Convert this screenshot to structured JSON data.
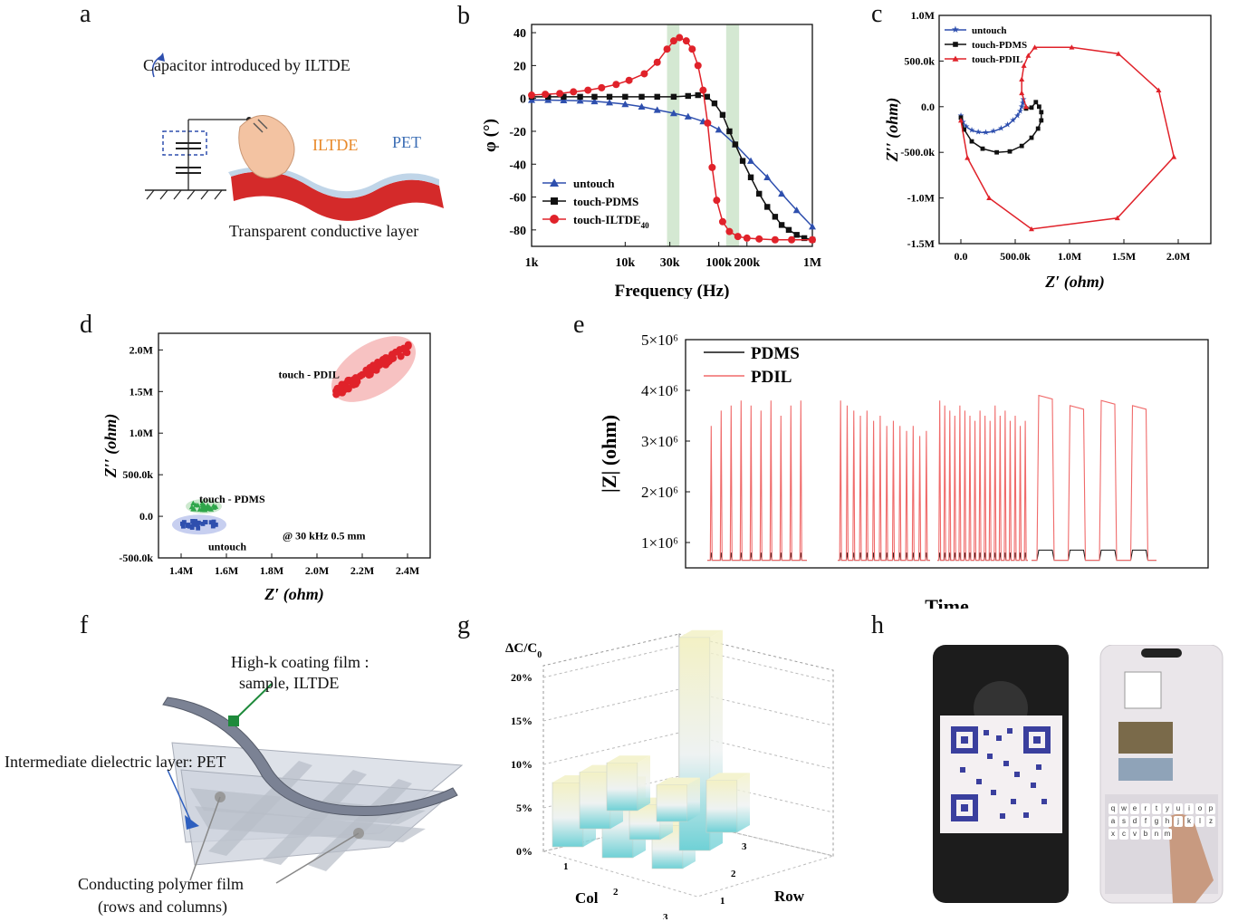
{
  "panels": {
    "a": {
      "label": "a",
      "caption": "Capacitor introduced by ILTDE",
      "iltde": "ILTDE",
      "pet": "PET",
      "layer": "Transparent conductive layer"
    },
    "f": {
      "label": "f",
      "highk_line1": "High-k coating film :",
      "highk_line2": "sample, ILTDE",
      "dielectric": "Intermediate dielectric layer: PET",
      "polymer_line1": "Conducting polymer film",
      "polymer_line2": "(rows and columns)"
    },
    "h": {
      "label": "h",
      "keyboard_keys": [
        "q",
        "w",
        "e",
        "r",
        "t",
        "y",
        "u",
        "i",
        "o",
        "p",
        "a",
        "s",
        "d",
        "f",
        "g",
        "h",
        "j",
        "k",
        "l",
        "z",
        "x",
        "c",
        "v",
        "b",
        "n",
        "m"
      ]
    }
  },
  "colors": {
    "untouch": "#2e4fae",
    "pdms": "#111111",
    "red": "#e0222a",
    "pdil_line": "#f06a6a",
    "band": "#d4e8d2"
  },
  "chart_data": [
    {
      "id": "b",
      "label": "b",
      "type": "line",
      "xscale": "log",
      "xlabel": "Frequency (Hz)",
      "ylabel": "φ (°)",
      "xlim": [
        1000,
        1000000
      ],
      "ylim": [
        -90,
        45
      ],
      "xticks": [
        1000,
        10000,
        30000,
        100000,
        200000,
        1000000
      ],
      "xticklabels": [
        "1k",
        "10k",
        "30k",
        "100k",
        "200k",
        "1M"
      ],
      "yticks": [
        40,
        20,
        0,
        -20,
        -40,
        -60,
        -80
      ],
      "highlight_bands": [
        [
          28000,
          38000
        ],
        [
          120000,
          165000
        ]
      ],
      "legend_position": "bottom-left",
      "series": [
        {
          "name": "untouch",
          "marker": "triangle",
          "x": [
            1000,
            1500,
            2200,
            3300,
            4700,
            6800,
            10000,
            15000,
            22000,
            33000,
            47000,
            68000,
            100000,
            150000,
            220000,
            330000,
            470000,
            680000,
            1000000
          ],
          "y": [
            -1,
            -1,
            -1.2,
            -1.4,
            -1.8,
            -2.5,
            -3.5,
            -5,
            -7,
            -9,
            -11,
            -14,
            -19,
            -28,
            -38,
            -48,
            -58,
            -68,
            -78
          ]
        },
        {
          "name": "touch-PDMS",
          "marker": "square",
          "x": [
            1000,
            1500,
            2200,
            3300,
            4700,
            6800,
            10000,
            15000,
            22000,
            33000,
            47000,
            60000,
            75000,
            90000,
            110000,
            130000,
            150000,
            180000,
            220000,
            270000,
            330000,
            400000,
            470000,
            560000,
            680000,
            820000,
            1000000
          ],
          "y": [
            1,
            1,
            1,
            1,
            1,
            1,
            1,
            1,
            1,
            1,
            1.5,
            2,
            1,
            -3,
            -10,
            -20,
            -28,
            -38,
            -48,
            -58,
            -66,
            -72,
            -77,
            -80,
            -83,
            -85,
            -86
          ]
        },
        {
          "name": "touch-ILTDE",
          "legend_sub": "40",
          "marker": "circle",
          "x": [
            1000,
            1400,
            2000,
            2800,
            4000,
            5600,
            8000,
            11000,
            16000,
            22000,
            28000,
            33000,
            38000,
            45000,
            52000,
            60000,
            68000,
            76000,
            85000,
            95000,
            110000,
            130000,
            160000,
            200000,
            270000,
            400000,
            600000,
            1000000
          ],
          "y": [
            2,
            2.5,
            3,
            4,
            5,
            6.5,
            8.5,
            11,
            15,
            22,
            30,
            35,
            37,
            35,
            30,
            20,
            5,
            -15,
            -42,
            -62,
            -75,
            -81,
            -84,
            -85,
            -85.5,
            -86,
            -86,
            -86
          ]
        }
      ]
    },
    {
      "id": "c",
      "label": "c",
      "type": "scatter",
      "xlabel": "Z′ (ohm)",
      "ylabel": "Z′′ (ohm)",
      "xlim": [
        -200000,
        2300000
      ],
      "ylim": [
        -1500000,
        1000000
      ],
      "xticklabels": [
        "0.0",
        "500.0k",
        "1.0M",
        "1.5M",
        "2.0M"
      ],
      "xticks": [
        0,
        500000,
        1000000,
        1500000,
        2000000
      ],
      "yticklabels": [
        "1.0M",
        "500.0k",
        "0.0",
        "-500.0k",
        "-1.0M",
        "-1.5M"
      ],
      "yticks": [
        1000000,
        500000,
        0,
        -500000,
        -1000000,
        -1500000
      ],
      "legend_position": "top-left",
      "series": [
        {
          "name": "untouch",
          "marker": "star",
          "x": [
            0,
            20000,
            50000,
            100000,
            160000,
            230000,
            300000,
            370000,
            430000,
            480000,
            520000,
            545000,
            560000,
            570000,
            575000
          ],
          "y": [
            -100000,
            -170000,
            -220000,
            -260000,
            -280000,
            -285000,
            -270000,
            -240000,
            -200000,
            -150000,
            -100000,
            -50000,
            0,
            40000,
            80000
          ]
        },
        {
          "name": "touch-PDMS",
          "marker": "square",
          "x": [
            0,
            30000,
            100000,
            200000,
            330000,
            450000,
            560000,
            650000,
            710000,
            740000,
            740000,
            720000,
            690000,
            650000,
            600000
          ],
          "y": [
            -120000,
            -250000,
            -380000,
            -460000,
            -500000,
            -490000,
            -430000,
            -340000,
            -240000,
            -150000,
            -60000,
            0,
            50000,
            -10000,
            -20000
          ]
        },
        {
          "name": "touch-PDIL",
          "marker": "triangle",
          "x": [
            600000,
            560000,
            560000,
            580000,
            620000,
            680000,
            1020000,
            1450000,
            1820000,
            1960000,
            1440000,
            650000,
            260000,
            60000,
            0
          ],
          "y": [
            0,
            150000,
            300000,
            450000,
            560000,
            650000,
            650000,
            580000,
            180000,
            -550000,
            -1220000,
            -1340000,
            -1000000,
            -560000,
            -150000
          ]
        }
      ]
    },
    {
      "id": "d",
      "label": "d",
      "type": "scatter",
      "xlabel": "Z′ (ohm)",
      "ylabel": "Z′′ (ohm)",
      "xlim": [
        1300000,
        2500000
      ],
      "ylim": [
        -500000,
        2200000
      ],
      "xticks": [
        1400000,
        1600000,
        1800000,
        2000000,
        2200000,
        2400000
      ],
      "xticklabels": [
        "1.4M",
        "1.6M",
        "1.8M",
        "2.0M",
        "2.2M",
        "2.4M"
      ],
      "yticks": [
        2000000,
        1500000,
        1000000,
        500000,
        0,
        -500000
      ],
      "yticklabels": [
        "2.0M",
        "1.5M",
        "1.0M",
        "500.0k",
        "0.0",
        "-500.0k"
      ],
      "annotation": "@ 30 kHz  0.5 mm",
      "clusters": [
        {
          "name": "touch - PDIL",
          "marker": "circle",
          "cx": 2250000,
          "cy": 1770000
        },
        {
          "name": "touch - PDMS",
          "marker": "triangle",
          "cx": 1500000,
          "cy": 120000
        },
        {
          "name": "untouch",
          "marker": "square",
          "cx": 1480000,
          "cy": -100000
        }
      ]
    },
    {
      "id": "e",
      "label": "e",
      "type": "line",
      "xlabel": "Time",
      "ylabel": "|Z| (ohm)",
      "ylim": [
        500000,
        5000000
      ],
      "yticklabels": [
        "1×10⁶",
        "2×10⁶",
        "3×10⁶",
        "4×10⁶",
        "5×10⁶"
      ],
      "yticks": [
        1000000,
        2000000,
        3000000,
        4000000,
        5000000
      ],
      "legend_position": "top-left",
      "series": [
        {
          "name": "PDMS"
        },
        {
          "name": "PDIL"
        }
      ],
      "baseline": 650000,
      "groups": [
        {
          "pulses": 10,
          "peaks": [
            3300000,
            3600000,
            3700000,
            3800000,
            3700000,
            3600000,
            3800000,
            3500000,
            3700000,
            3800000
          ]
        },
        {
          "pulses": 14,
          "peaks": [
            3800000,
            3700000,
            3600000,
            3500000,
            3600000,
            3400000,
            3500000,
            3300000,
            3400000,
            3300000,
            3200000,
            3300000,
            3100000,
            3200000
          ]
        },
        {
          "pulses": 18,
          "peaks": [
            3800000,
            3700000,
            3600000,
            3500000,
            3700000,
            3600000,
            3500000,
            3400000,
            3600000,
            3500000,
            3400000,
            3700000,
            3500000,
            3600000,
            3400000,
            3500000,
            3300000,
            3400000
          ]
        },
        {
          "pulses": 4,
          "plateau": [
            3900000,
            3700000,
            3800000,
            3700000
          ]
        }
      ]
    },
    {
      "id": "g",
      "label": "g",
      "type": "bar",
      "zlabel": "ΔC/C",
      "zlabel_sub": "0",
      "xlabel": "Col",
      "ylabel": "Row",
      "zticklabels": [
        "0%",
        "5%",
        "10%",
        "15%",
        "20%"
      ],
      "zticks": [
        0,
        5,
        10,
        15,
        20
      ],
      "col_ticks": [
        "1",
        "2",
        "3"
      ],
      "row_ticks": [
        "1",
        "2",
        "3"
      ],
      "bars": [
        {
          "col": 1,
          "row": 3,
          "value": 7.4
        },
        {
          "col": 2,
          "row": 3,
          "value": 8.5
        },
        {
          "col": 3,
          "row": 3,
          "value": 5.0
        },
        {
          "col": 1,
          "row": 2,
          "value": 6.5
        },
        {
          "col": 2,
          "row": 2,
          "value": 4.0
        },
        {
          "col": 3,
          "row": 2,
          "value": 24.5
        },
        {
          "col": 1,
          "row": 1,
          "value": 5.5
        },
        {
          "col": 2,
          "row": 1,
          "value": 4.2
        },
        {
          "col": 3,
          "row": 1,
          "value": 6.0
        }
      ]
    }
  ]
}
